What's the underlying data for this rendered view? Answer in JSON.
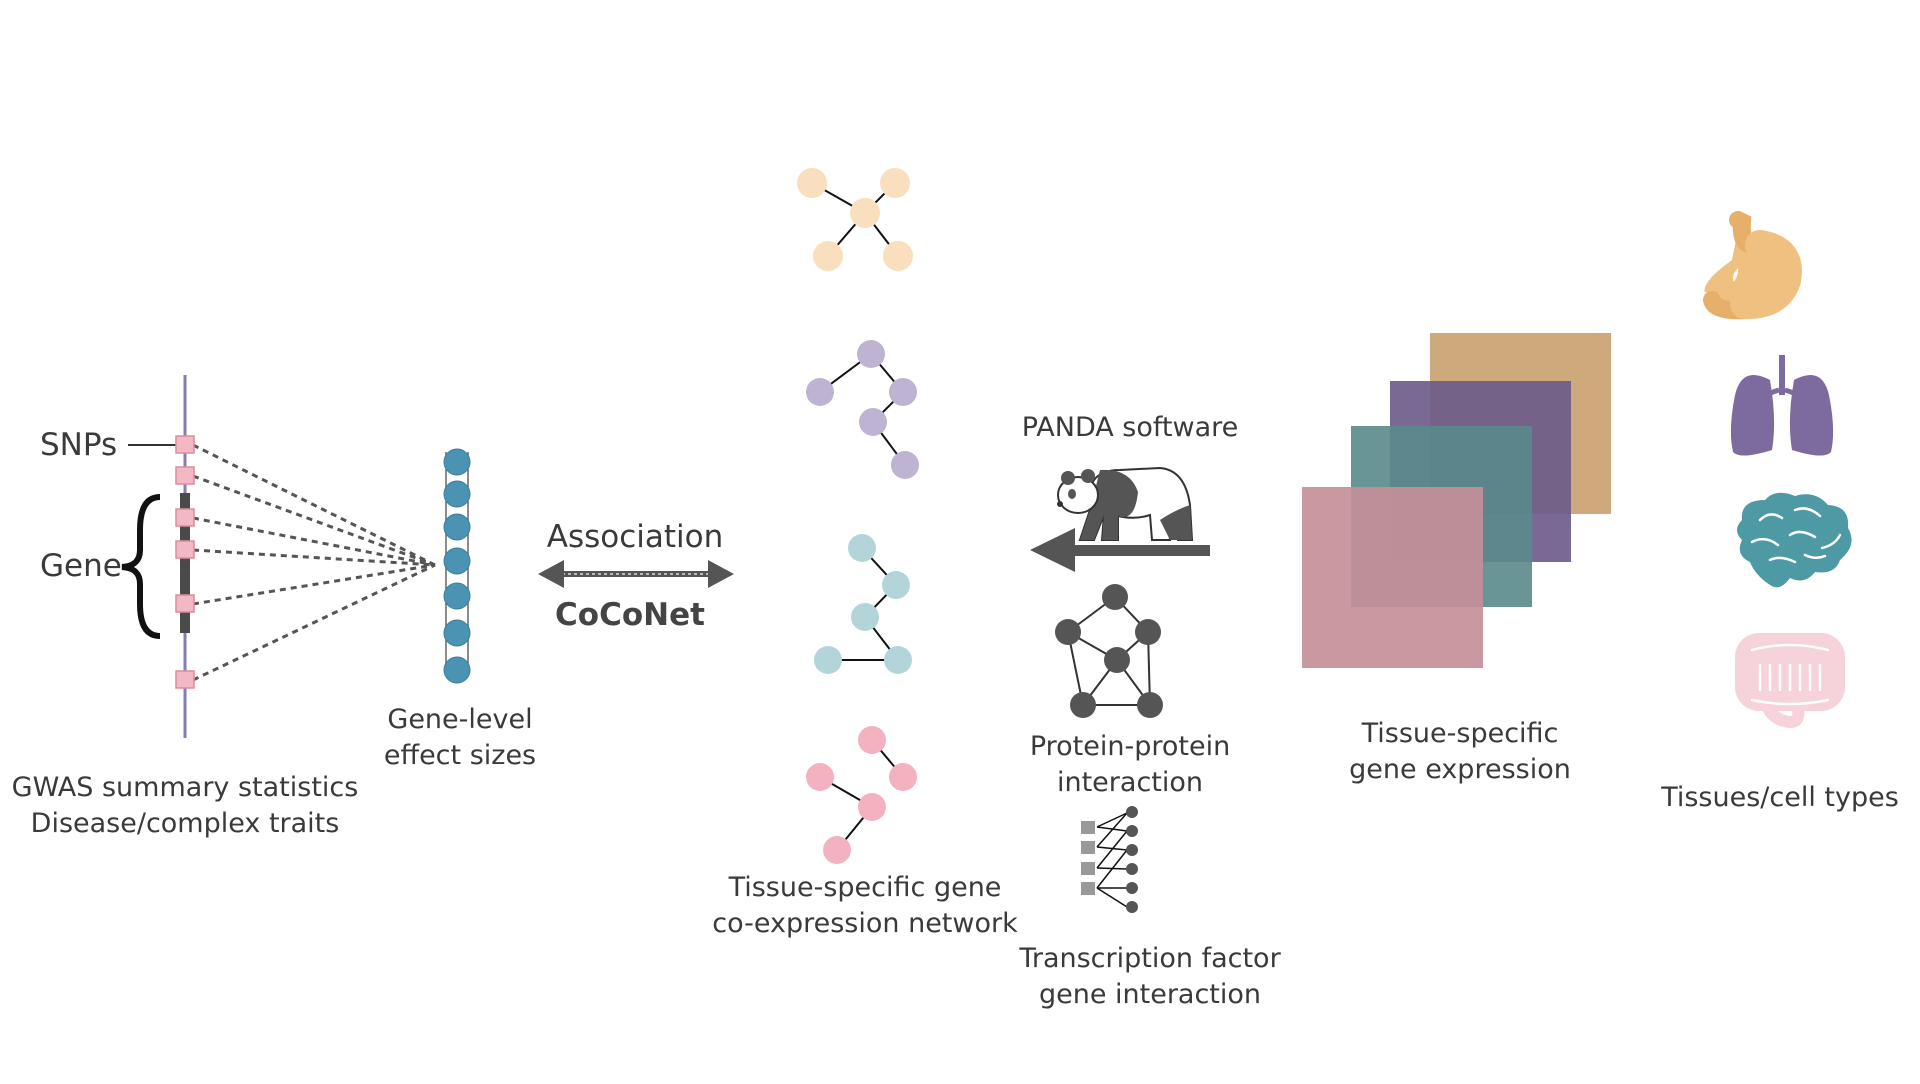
{
  "labels": {
    "snps": "SNPs",
    "gene": "Gene",
    "gwas_line1": "GWAS summary statistics",
    "gwas_line2": "Disease/complex traits",
    "gene_level_line1": "Gene-level",
    "gene_level_line2": "effect sizes",
    "association": "Association",
    "coconet": "CoCoNet",
    "network_line1": "Tissue-specific gene",
    "network_line2": "co-expression network",
    "panda": "PANDA software",
    "ppi_line1": "Protein-protein",
    "ppi_line2": "interaction",
    "tf_line1": "Transcription factor",
    "tf_line2": "gene interaction",
    "expression_line1": "Tissue-specific",
    "expression_line2": "gene expression",
    "tissues": "Tissues/cell types"
  },
  "icons": [
    "stomach-icon",
    "lungs-icon",
    "brain-icon",
    "intestine-icon",
    "panda-icon"
  ],
  "colors": {
    "gene_dots": "#4a93b3",
    "snp_marker": "#f2b8c4",
    "chromosome": "#8a7bb0",
    "network_orange": "#f9dfbd",
    "network_purple": "#bfb3d3",
    "network_teal": "#b3d5da",
    "network_pink": "#f2b2bf",
    "layer_tan": "#c8a06e",
    "layer_purple": "#6a5a8a",
    "layer_teal": "#5a8a8c",
    "layer_pink": "#c48f99",
    "stomach": "#f0c080",
    "lungs": "#7d6a9e",
    "brain": "#4e9aa4",
    "intestine": "#f6d2da",
    "dark_node": "#555555"
  }
}
